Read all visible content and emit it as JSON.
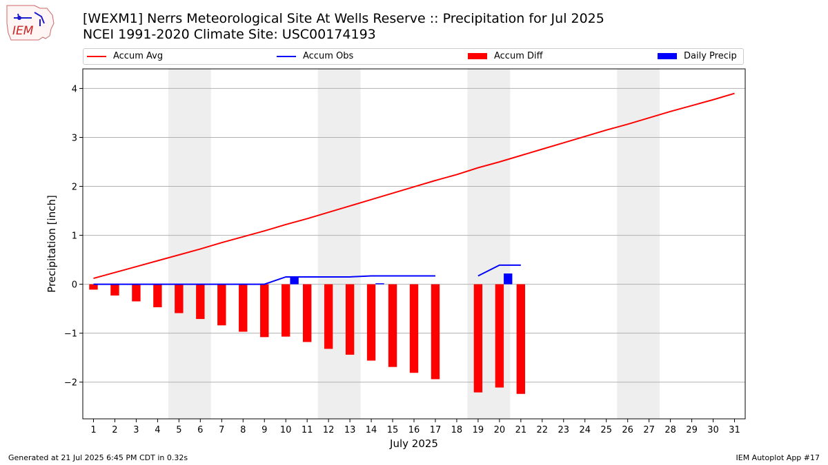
{
  "header": {
    "title_line1": "[WEXM1] Nerrs Meteorological Site At Wells Reserve :: Precipitation for Jul 2025",
    "title_line2": "NCEI 1991-2020 Climate Site: USC00174193",
    "logo_text": "IEM"
  },
  "footer": {
    "generated": "Generated at 21 Jul 2025 6:45 PM CDT in 0.32s",
    "app": "IEM Autoplot App #17"
  },
  "colors": {
    "accum_avg": "#ff0000",
    "accum_obs": "#0000ff",
    "accum_diff": "#ff0000",
    "daily_precip": "#0000ff",
    "weekend_shade": "#eeeeee",
    "grid": "#b0b0b0"
  },
  "chart_data": {
    "type": "bar",
    "title": "[WEXM1] Nerrs Meteorological Site At Wells Reserve :: Precipitation for Jul 2025",
    "subtitle": "NCEI 1991-2020 Climate Site: USC00174193",
    "xlabel": "July 2025",
    "ylabel": "Precipitation [inch]",
    "xlim": [
      0.5,
      31.5
    ],
    "ylim": [
      -2.75,
      4.4
    ],
    "yticks": [
      -2,
      -1,
      0,
      1,
      2,
      3,
      4
    ],
    "ytick_labels": [
      "−2",
      "−1",
      "0",
      "1",
      "2",
      "3",
      "4"
    ],
    "x": [
      1,
      2,
      3,
      4,
      5,
      6,
      7,
      8,
      9,
      10,
      11,
      12,
      13,
      14,
      15,
      16,
      17,
      18,
      19,
      20,
      21,
      22,
      23,
      24,
      25,
      26,
      27,
      28,
      29,
      30,
      31
    ],
    "grid": "horizontal",
    "legend_position": "top",
    "shaded_ranges": [
      [
        4.5,
        6.5
      ],
      [
        11.5,
        13.5
      ],
      [
        18.5,
        20.5
      ],
      [
        25.5,
        27.5
      ]
    ],
    "series": [
      {
        "name": "Accum Avg",
        "type": "line",
        "x": [
          1,
          2,
          3,
          4,
          5,
          6,
          7,
          8,
          9,
          10,
          11,
          12,
          13,
          14,
          15,
          16,
          17,
          18,
          19,
          20,
          21,
          22,
          23,
          24,
          25,
          26,
          27,
          28,
          29,
          30,
          31
        ],
        "values": [
          0.12,
          0.24,
          0.36,
          0.48,
          0.6,
          0.72,
          0.85,
          0.97,
          1.09,
          1.22,
          1.34,
          1.47,
          1.6,
          1.73,
          1.86,
          1.99,
          2.12,
          2.24,
          2.38,
          2.5,
          2.63,
          2.76,
          2.89,
          3.02,
          3.15,
          3.27,
          3.4,
          3.53,
          3.65,
          3.77,
          3.9
        ]
      },
      {
        "name": "Accum Obs",
        "type": "line",
        "x": [
          1,
          2,
          3,
          4,
          5,
          6,
          7,
          8,
          9,
          10,
          11,
          12,
          13,
          14,
          15,
          16,
          17,
          null,
          19,
          20,
          21
        ],
        "values": [
          0,
          0,
          0,
          0,
          0,
          0,
          0,
          0,
          0,
          0.15,
          0.15,
          0.15,
          0.15,
          0.17,
          0.17,
          0.17,
          0.17,
          null,
          0.17,
          0.39,
          0.39
        ]
      },
      {
        "name": "Accum Diff",
        "type": "bar",
        "x": [
          1,
          2,
          3,
          4,
          5,
          6,
          7,
          8,
          9,
          10,
          11,
          12,
          13,
          14,
          15,
          16,
          17,
          19,
          20,
          21
        ],
        "values": [
          -0.11,
          -0.23,
          -0.35,
          -0.47,
          -0.59,
          -0.71,
          -0.84,
          -0.97,
          -1.08,
          -1.07,
          -1.18,
          -1.32,
          -1.44,
          -1.56,
          -1.69,
          -1.81,
          -1.94,
          -2.21,
          -2.11,
          -2.24
        ]
      },
      {
        "name": "Daily Precip",
        "type": "bar",
        "x": [
          10,
          14,
          20
        ],
        "values": [
          0.15,
          0.02,
          0.22
        ]
      }
    ]
  }
}
